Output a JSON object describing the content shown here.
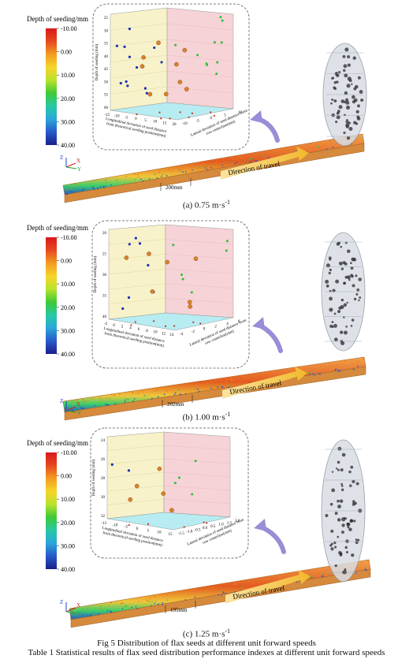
{
  "panels": [
    {
      "legend_title": "Depth of seeding/mm",
      "legend_ticks": [
        "-10.00",
        "0.00",
        "10.00",
        "20.00",
        "30.00",
        "40.00"
      ],
      "y_axis_label": "Depth of seeding (mm)",
      "x_axis_label_1": "Longitudinal deviation of seed distance",
      "x_axis_label_2": "from theoretical seeding position(mm)",
      "z_axis_label_1": "Lateral deviation of seed distance from",
      "z_axis_label_2": "row centerline(mm)",
      "y_ticks": [
        "25",
        "30",
        "35",
        "40",
        "45",
        "50",
        "55",
        "60"
      ],
      "x_ticks": [
        "-15",
        "-10",
        "-5",
        "0",
        "5",
        "10",
        "15",
        "20"
      ],
      "z_ticks": [
        "-10",
        "-5",
        "0",
        "5",
        "10"
      ],
      "distance_label": "200mm",
      "travel_label": "Direction of travel",
      "caption": "(a) 0.75 m·s",
      "caption_sup": "-1"
    },
    {
      "legend_title": "Depth of seeding/mm",
      "legend_ticks": [
        "-10.00",
        "0.00",
        "10.00",
        "20.00",
        "30.00",
        "40.00"
      ],
      "y_axis_label": "Depth of seeding (mm)",
      "x_axis_label_1": "Longitudinal deviation of seed distance",
      "x_axis_label_2": "from theoretical seeding position(mm)",
      "z_axis_label_1": "Lateral deviation of seed distance from",
      "z_axis_label_2": "row centerline(mm)",
      "y_ticks": [
        "20",
        "25",
        "30",
        "35",
        "40"
      ],
      "x_ticks": [
        "-2",
        "0",
        "2",
        "4",
        "6",
        "8",
        "10",
        "12",
        "14"
      ],
      "z_ticks": [
        "-4",
        "-2",
        "0",
        "2",
        "4",
        "6"
      ],
      "distance_label": "202mm",
      "travel_label": "Direction of travel",
      "caption": "(b) 1.00 m·s",
      "caption_sup": "-1"
    },
    {
      "legend_title": "Depth of seeding/mm",
      "legend_ticks": [
        "-10.00",
        "0.00",
        "10.00",
        "20.00",
        "30.00",
        "40.00"
      ],
      "y_axis_label": "Depth of seeding (mm)",
      "x_axis_label_1": "Longitudinal deviation of seed distance",
      "x_axis_label_2": "from theoretical seeding position(mm)",
      "z_axis_label_1": "Lateral deviation of seed distance from",
      "z_axis_label_2": "row centerline(mm)",
      "y_ticks": [
        "24",
        "26",
        "28",
        "30",
        "32"
      ],
      "x_ticks": [
        "-15",
        "-10",
        "-5",
        "0",
        "5",
        "10",
        "15"
      ],
      "z_ticks": [
        "-1.5",
        "-1.0",
        "-0.5",
        "0.0",
        "0.5",
        "1.0",
        "1.5",
        "2.0"
      ],
      "distance_label": "195mm",
      "travel_label": "Direction of travel",
      "caption": "(c) 1.25 m·s",
      "caption_sup": "-1"
    }
  ],
  "figure_caption": "Fig 5 Distribution of flax seeds at different unit forward speeds",
  "table_caption": "Table 1 Statistical results of flax seed distribution performance indexes at different unit forward speeds",
  "axis_letters": {
    "z": "Z",
    "x": "X",
    "y": "Y"
  },
  "colors": {
    "left_wall": "#f7f2c9",
    "right_wall": "#f6d3d6",
    "floor": "#b6ecf2",
    "seed_blue": "#1c2fb8",
    "seed_green": "#2fbf3a",
    "seed_orange": "#d9822b",
    "arrow_travel": "#f2b92b",
    "arrow_curve": "#9a8cd6"
  }
}
